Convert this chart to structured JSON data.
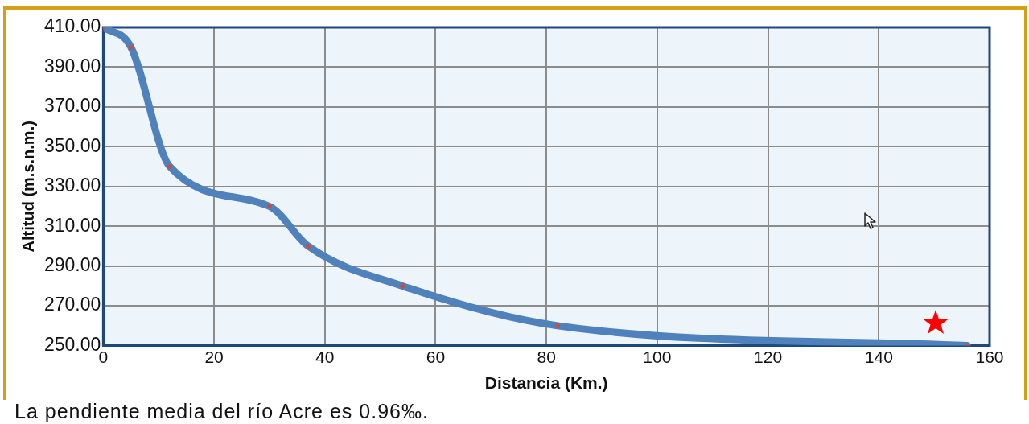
{
  "chart_data": {
    "type": "line",
    "xlabel": "Distancia (Km.)",
    "ylabel": "Altitud (m.s.n.m.)",
    "x": [
      0,
      5,
      12,
      30,
      37,
      54,
      82,
      156
    ],
    "series": [
      {
        "color": "#4f81bd",
        "values": [
          410,
          400,
          340,
          320,
          300,
          280,
          260,
          250
        ]
      }
    ],
    "xlim": [
      0,
      160
    ],
    "xticks": [
      0,
      20,
      40,
      60,
      80,
      100,
      120,
      140,
      160
    ],
    "ylim": [
      250,
      410
    ],
    "yticks": [
      {
        "value": 250,
        "label": "250.00"
      },
      {
        "value": 270,
        "label": "270.00"
      },
      {
        "value": 290,
        "label": "290.00"
      },
      {
        "value": 310,
        "label": "310.00"
      },
      {
        "value": 330,
        "label": "330.00"
      },
      {
        "value": 350,
        "label": "350.00"
      },
      {
        "value": 370,
        "label": "370.00"
      },
      {
        "value": 390,
        "label": "390.00"
      },
      {
        "value": 410,
        "label": "410.00"
      }
    ],
    "grid": true,
    "legend": false,
    "marker": "circle",
    "line_style": "solid",
    "annotations": [
      "La pendiente media del río Acre es 0.96‰."
    ]
  }
}
